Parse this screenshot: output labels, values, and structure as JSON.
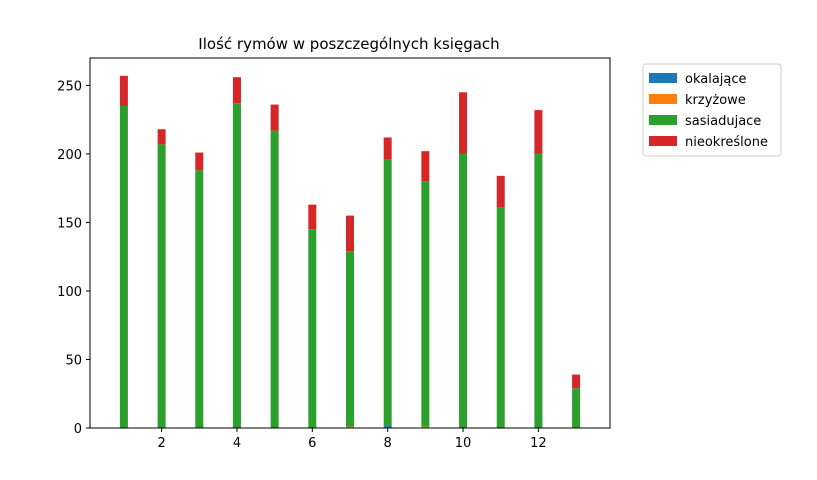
{
  "chart_data": {
    "type": "bar",
    "stacked": true,
    "title": "Ilość rymów w poszczególnych księgach",
    "xlabel": "",
    "ylabel": "",
    "x": [
      1,
      2,
      3,
      4,
      5,
      6,
      7,
      8,
      9,
      10,
      11,
      12,
      13
    ],
    "xlim": [
      0.1,
      13.9
    ],
    "ylim": [
      0,
      270
    ],
    "xticks": [
      2,
      4,
      6,
      8,
      10,
      12
    ],
    "yticks": [
      0,
      50,
      100,
      150,
      200,
      250
    ],
    "grid": false,
    "legend_position": "outside-upper-right",
    "series": [
      {
        "name": "okalające",
        "color": "#1f77b4",
        "values": [
          0,
          0,
          0,
          0,
          0,
          0,
          0,
          2,
          0,
          0,
          0,
          0,
          0
        ]
      },
      {
        "name": "krzyżowe",
        "color": "#ff7f0e",
        "values": [
          0,
          0,
          0,
          0,
          0,
          0,
          1,
          0,
          1,
          0,
          0,
          0,
          0
        ]
      },
      {
        "name": "sasiadujace",
        "color": "#2ca02c",
        "values": [
          235,
          207,
          188,
          237,
          217,
          145,
          128,
          194,
          179,
          200,
          161,
          200,
          29
        ]
      },
      {
        "name": "nieokreślone",
        "color": "#d62728",
        "values": [
          22,
          11,
          13,
          19,
          19,
          18,
          26,
          16,
          22,
          45,
          23,
          32,
          10
        ]
      }
    ]
  }
}
